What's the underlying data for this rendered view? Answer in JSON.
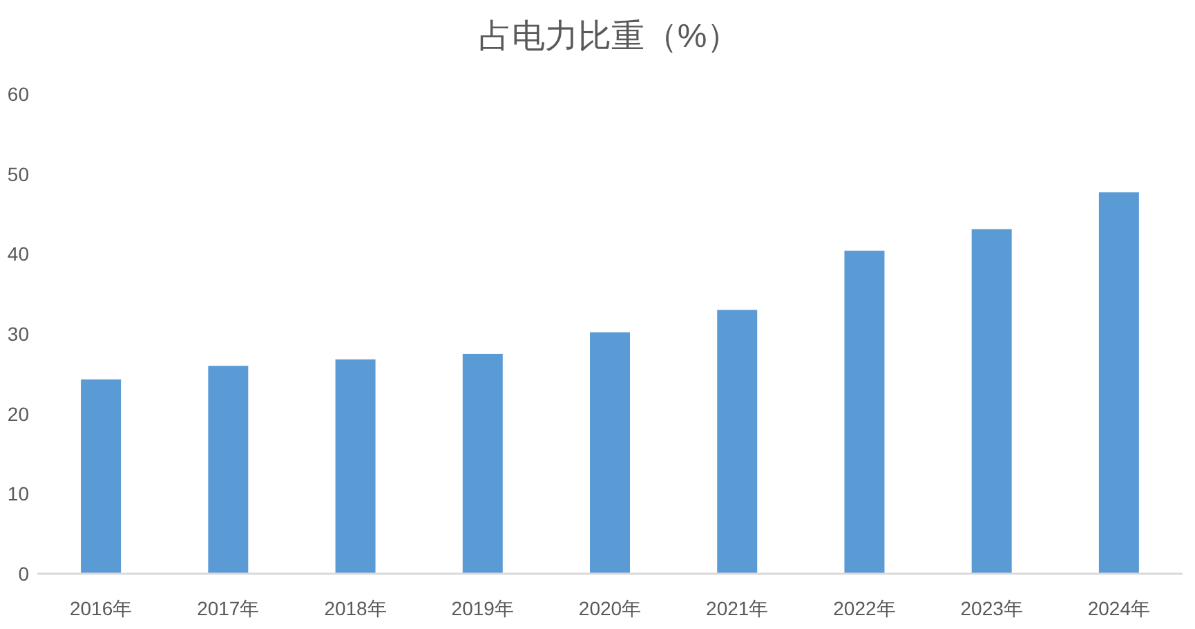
{
  "chart_data": {
    "type": "bar",
    "title": "占电力比重（%）",
    "categories": [
      "2016年",
      "2017年",
      "2018年",
      "2019年",
      "2020年",
      "2021年",
      "2022年",
      "2023年",
      "2024年"
    ],
    "values": [
      24.3,
      26.0,
      26.8,
      27.5,
      30.2,
      33.0,
      40.4,
      43.1,
      47.7
    ],
    "color": "#5b9bd5",
    "ylim": [
      0,
      60
    ],
    "yticks": [
      0,
      10,
      20,
      30,
      40,
      50,
      60
    ]
  }
}
